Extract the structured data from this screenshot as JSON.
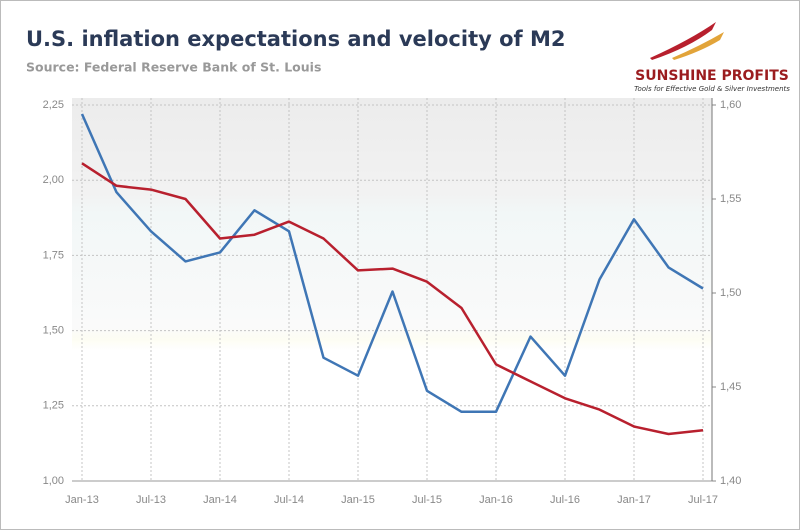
{
  "chart_data": {
    "type": "line",
    "title": "U.S. inflation expectations and velocity of M2",
    "subtitle": "Source: Federal Reserve Bank of St. Louis",
    "logo": {
      "name": "SUNSHINE PROFITS",
      "tagline": "Tools for Effective Gold & Silver Investments"
    },
    "categories": [
      "Jan-13",
      null,
      "Jul-13",
      null,
      "Jan-14",
      null,
      "Jul-14",
      null,
      "Jan-15",
      null,
      "Jul-15",
      null,
      "Jan-16",
      null,
      "Jul-16",
      null,
      "Jan-17",
      null,
      "Jul-17"
    ],
    "series": [
      {
        "color": "#3f76b5",
        "axis": "y",
        "values": [
          2.22,
          1.96,
          1.83,
          1.73,
          1.76,
          1.9,
          1.83,
          1.41,
          1.35,
          1.63,
          1.3,
          1.23,
          1.23,
          1.48,
          1.35,
          1.67,
          1.87,
          1.71,
          1.64
        ]
      },
      {
        "color": "#b8202e",
        "axis": "y2",
        "values": [
          1.569,
          1.557,
          1.555,
          1.55,
          1.529,
          1.531,
          1.538,
          1.529,
          1.512,
          1.513,
          1.506,
          1.492,
          1.462,
          1.453,
          1.444,
          1.438,
          1.429,
          1.425,
          1.427
        ]
      }
    ],
    "ylim": [
      1.0,
      2.25
    ],
    "yticks": [
      {
        "value": 1.0,
        "label": "1,00"
      },
      {
        "value": 1.25,
        "label": "1,25"
      },
      {
        "value": 1.5,
        "label": "1,50"
      },
      {
        "value": 1.75,
        "label": "1,75"
      },
      {
        "value": 2.0,
        "label": "2,00"
      },
      {
        "value": 2.25,
        "label": "2,25"
      }
    ],
    "y2lim": [
      1.4,
      1.6
    ],
    "y2ticks": [
      {
        "value": 1.4,
        "label": "1,40"
      },
      {
        "value": 1.45,
        "label": "1,45"
      },
      {
        "value": 1.5,
        "label": "1,50"
      },
      {
        "value": 1.55,
        "label": "1,55"
      },
      {
        "value": 1.6,
        "label": "1,60"
      }
    ],
    "grid": true
  }
}
